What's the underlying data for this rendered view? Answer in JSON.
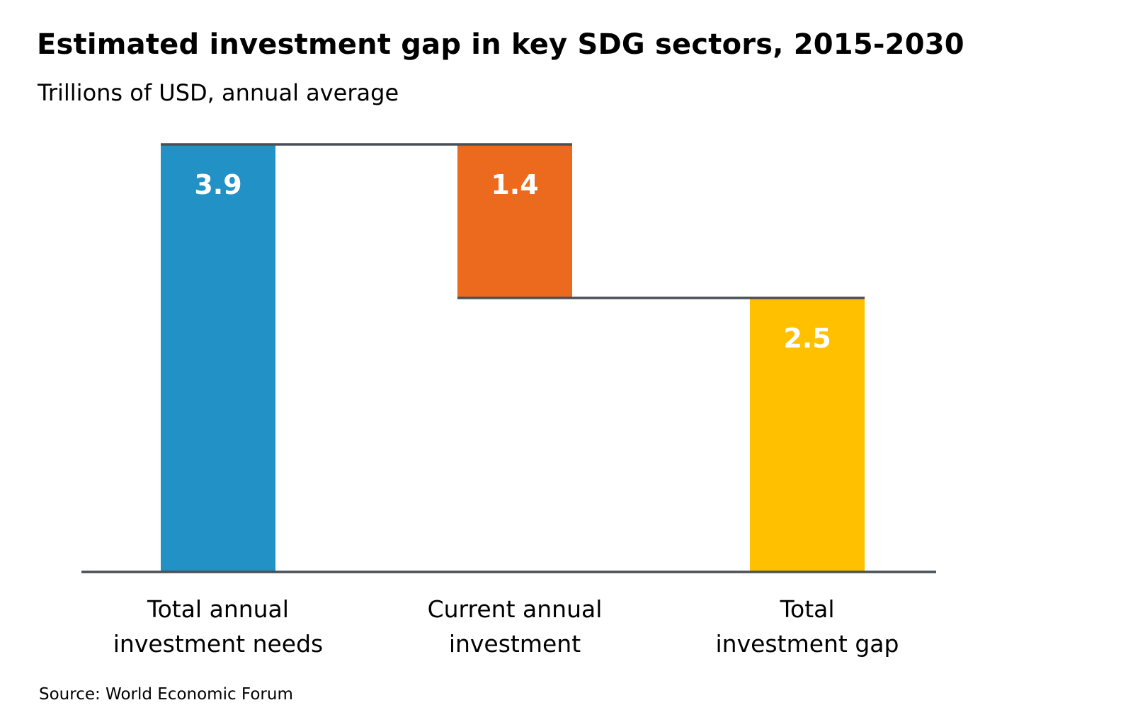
{
  "header": {
    "title": "Estimated investment gap in key SDG sectors, 2015-2030",
    "subtitle": "Trillions of USD, annual average"
  },
  "footer": {
    "source": "Source: World Economic Forum"
  },
  "chart_data": {
    "type": "bar",
    "subtype": "waterfall",
    "title": "Estimated investment gap in key SDG sectors, 2015-2030",
    "subtitle": "Trillions of USD, annual average",
    "ylim": [
      0,
      3.9
    ],
    "grid": false,
    "legend": "none",
    "bars": [
      {
        "key": "needs",
        "label_lines": [
          "Total annual",
          "investment needs"
        ],
        "value": 3.9,
        "value_label": "3.9",
        "start": 0,
        "end": 3.9,
        "color": "#2191C6"
      },
      {
        "key": "current",
        "label_lines": [
          "Current annual",
          "investment"
        ],
        "value": 1.4,
        "value_label": "1.4",
        "start": 2.5,
        "end": 3.9,
        "color": "#EB6A1D"
      },
      {
        "key": "gap",
        "label_lines": [
          "Total",
          "investment gap"
        ],
        "value": 2.5,
        "value_label": "2.5",
        "start": 0,
        "end": 2.5,
        "color": "#FFC000"
      }
    ],
    "line_color": "#4A4F57"
  }
}
